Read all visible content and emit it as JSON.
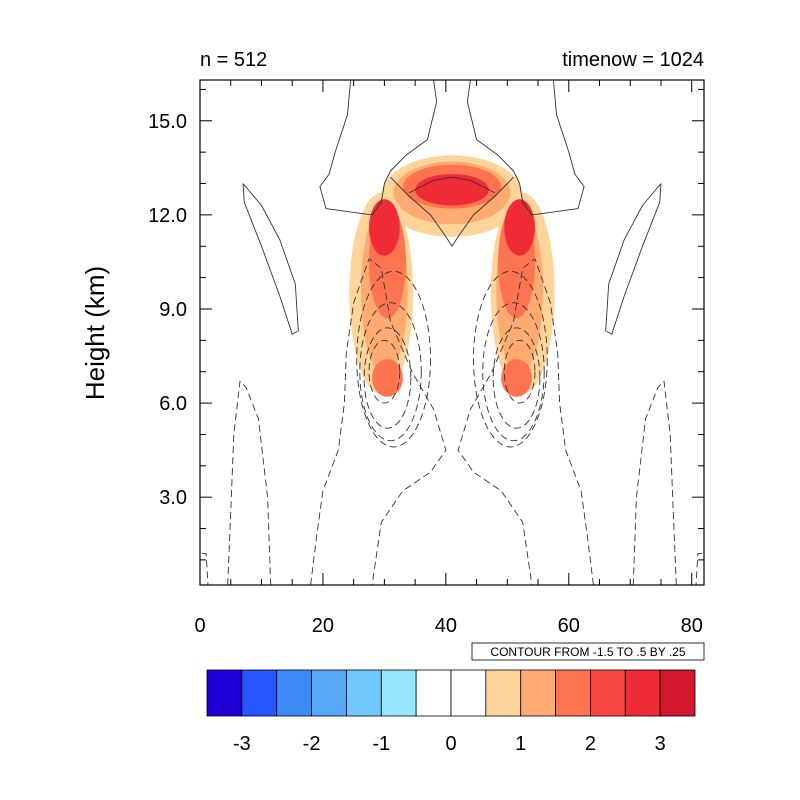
{
  "chart_data": {
    "type": "heatmap",
    "left_title": "n = 512",
    "right_title": "timenow = 1024",
    "ylabel": "Height (km)",
    "xlabel": "",
    "xlim": [
      0,
      82
    ],
    "ylim": [
      0.2,
      16.3
    ],
    "x_ticks": [
      0,
      20,
      40,
      60,
      80
    ],
    "x_tick_labels": [
      "0",
      "20",
      "40",
      "60",
      "80"
    ],
    "y_ticks": [
      3,
      6,
      9,
      12,
      15
    ],
    "y_tick_labels": [
      "3.0",
      "6.0",
      "9.0",
      "12.0",
      "15.0"
    ],
    "contour_info": "CONTOUR FROM -1.5 TO .5 BY .25",
    "colorbar": {
      "colors": [
        "#1f00d6",
        "#2756ff",
        "#3d8af7",
        "#56a8f4",
        "#6fc7fb",
        "#97e6ff",
        "#ffffff",
        "#ffffff",
        "#ffd49b",
        "#ffaa70",
        "#ff7450",
        "#f84640",
        "#ef2b36",
        "#d4162e"
      ],
      "tick_values": [
        -3,
        -2,
        -1,
        0,
        1,
        2,
        3
      ],
      "tick_labels": [
        "-3",
        "-2",
        "-1",
        "0",
        "1",
        "2",
        "3"
      ]
    },
    "fill_bands": [
      {
        "level": 1,
        "color": "#ffd49b",
        "centers": [
          [
            29.5,
            9.5,
            5.2,
            3.2
          ],
          [
            52.5,
            9.5,
            5.2,
            3.2
          ],
          [
            41,
            12.6,
            11.5,
            1.3
          ]
        ]
      },
      {
        "level": 2,
        "color": "#ffaa70",
        "centers": [
          [
            30.0,
            9.6,
            3.8,
            2.7
          ],
          [
            52.0,
            9.6,
            3.8,
            2.7
          ],
          [
            41,
            12.7,
            9.5,
            1.0
          ]
        ]
      },
      {
        "level": 3,
        "color": "#ff7450",
        "centers": [
          [
            30.5,
            10.5,
            3.0,
            1.8
          ],
          [
            51.5,
            10.5,
            3.0,
            1.8
          ],
          [
            41,
            12.9,
            8.0,
            0.7
          ],
          [
            30.5,
            6.8,
            2.5,
            0.6
          ],
          [
            51.5,
            6.8,
            2.5,
            0.6
          ]
        ]
      },
      {
        "level": 4,
        "color": "#ef2b36",
        "centers": [
          [
            30.0,
            11.6,
            2.5,
            0.9
          ],
          [
            52.0,
            11.6,
            2.5,
            0.9
          ],
          [
            41,
            12.8,
            6.0,
            0.5
          ]
        ]
      }
    ],
    "contours": [
      {
        "style": "solid",
        "points": [
          [
            38,
            16.3
          ],
          [
            38.5,
            15.6
          ],
          [
            37,
            14.4
          ],
          [
            33.5,
            13.9
          ],
          [
            31,
            13.4
          ],
          [
            30,
            13.0
          ],
          [
            29.5,
            12.4
          ],
          [
            28,
            12.0
          ],
          [
            20.5,
            12.2
          ],
          [
            19.5,
            12.9
          ],
          [
            21,
            13.3
          ],
          [
            22,
            14.0
          ],
          [
            24,
            15.2
          ],
          [
            24.5,
            16.3
          ]
        ]
      },
      {
        "style": "solid",
        "points": [
          [
            44,
            16.3
          ],
          [
            43.5,
            15.6
          ],
          [
            45,
            14.4
          ],
          [
            48.5,
            13.9
          ],
          [
            51,
            13.4
          ],
          [
            52,
            13.0
          ],
          [
            52.5,
            12.4
          ],
          [
            54,
            12.0
          ],
          [
            61.5,
            12.2
          ],
          [
            62.5,
            12.9
          ],
          [
            61,
            13.3
          ],
          [
            60,
            14.0
          ],
          [
            58,
            15.2
          ],
          [
            57.5,
            16.3
          ]
        ]
      },
      {
        "style": "solid",
        "points": [
          [
            31,
            13.2
          ],
          [
            34,
            12.6
          ],
          [
            37.5,
            12.0
          ],
          [
            40,
            11.3
          ],
          [
            41,
            11.0
          ],
          [
            42,
            11.3
          ],
          [
            44.5,
            12.0
          ],
          [
            48,
            12.6
          ],
          [
            51,
            13.2
          ]
        ]
      },
      {
        "style": "solid",
        "points": [
          [
            34,
            12.7
          ],
          [
            38,
            13.1
          ],
          [
            41,
            13.2
          ],
          [
            44,
            13.1
          ],
          [
            48,
            12.7
          ]
        ]
      },
      {
        "style": "solid",
        "points": [
          [
            7,
            13.0
          ],
          [
            10,
            12.3
          ],
          [
            13,
            11.2
          ],
          [
            15.5,
            9.8
          ],
          [
            16,
            8.3
          ],
          [
            15,
            8.2
          ],
          [
            13,
            9.4
          ],
          [
            10,
            11.0
          ],
          [
            7.2,
            12.4
          ],
          [
            7,
            13.0
          ]
        ]
      },
      {
        "style": "solid",
        "points": [
          [
            75,
            13.0
          ],
          [
            72,
            12.3
          ],
          [
            69,
            11.2
          ],
          [
            66.5,
            9.8
          ],
          [
            66,
            8.3
          ],
          [
            67,
            8.2
          ],
          [
            69,
            9.4
          ],
          [
            72,
            11.0
          ],
          [
            74.8,
            12.4
          ],
          [
            75,
            13.0
          ]
        ]
      },
      {
        "style": "dashed",
        "points": [
          [
            18,
            0.2
          ],
          [
            19,
            1.8
          ],
          [
            20,
            3.2
          ],
          [
            22.5,
            4.5
          ],
          [
            23.5,
            6.0
          ],
          [
            23.8,
            7.6
          ],
          [
            25,
            9.2
          ],
          [
            27.5,
            10.6
          ],
          [
            29.5,
            10.3
          ],
          [
            31,
            8.6
          ],
          [
            34.5,
            7.0
          ],
          [
            38,
            5.8
          ],
          [
            40,
            4.5
          ],
          [
            37.5,
            3.8
          ],
          [
            33,
            3.2
          ],
          [
            29.5,
            2.2
          ],
          [
            28,
            0.2
          ]
        ]
      },
      {
        "style": "dashed",
        "points": [
          [
            64,
            0.2
          ],
          [
            63,
            1.8
          ],
          [
            62,
            3.2
          ],
          [
            59.5,
            4.5
          ],
          [
            58.5,
            6.0
          ],
          [
            58.2,
            7.6
          ],
          [
            57,
            9.2
          ],
          [
            54.5,
            10.6
          ],
          [
            52.5,
            10.3
          ],
          [
            51,
            8.6
          ],
          [
            47.5,
            7.0
          ],
          [
            44,
            5.8
          ],
          [
            42,
            4.5
          ],
          [
            44.5,
            3.8
          ],
          [
            49,
            3.2
          ],
          [
            52.5,
            2.2
          ],
          [
            54,
            0.2
          ]
        ]
      },
      {
        "style": "dashed",
        "points": [
          [
            4.5,
            0.2
          ],
          [
            5.0,
            2.5
          ],
          [
            5.5,
            5.0
          ],
          [
            6.5,
            6.7
          ],
          [
            7.5,
            6.5
          ],
          [
            9.5,
            5.5
          ],
          [
            11,
            3.0
          ],
          [
            11.5,
            0.2
          ]
        ]
      },
      {
        "style": "dashed",
        "points": [
          [
            77.5,
            0.2
          ],
          [
            77,
            2.5
          ],
          [
            76.5,
            5.0
          ],
          [
            75.5,
            6.7
          ],
          [
            74.5,
            6.5
          ],
          [
            72.5,
            5.5
          ],
          [
            71,
            3.0
          ],
          [
            70.5,
            0.2
          ]
        ]
      },
      {
        "style": "dashed",
        "points": [
          [
            0.3,
            1.2
          ],
          [
            1.0,
            1.2
          ],
          [
            1.3,
            0.2
          ]
        ]
      },
      {
        "style": "dashed",
        "points": [
          [
            81.7,
            1.2
          ],
          [
            81.0,
            1.2
          ],
          [
            80.7,
            0.2
          ]
        ]
      },
      {
        "style": "dashed",
        "ellipse": [
          30.0,
          7.0,
          2.5,
          1.0
        ]
      },
      {
        "style": "dashed",
        "ellipse": [
          30.5,
          6.8,
          3.8,
          1.6
        ]
      },
      {
        "style": "dashed",
        "ellipse": [
          31.0,
          7.0,
          5.0,
          2.2
        ]
      },
      {
        "style": "dashed",
        "ellipse": [
          31.5,
          7.4,
          6.0,
          2.8
        ]
      },
      {
        "style": "dashed",
        "ellipse": [
          52.0,
          7.0,
          2.5,
          1.0
        ]
      },
      {
        "style": "dashed",
        "ellipse": [
          51.5,
          6.8,
          3.8,
          1.6
        ]
      },
      {
        "style": "dashed",
        "ellipse": [
          51.0,
          7.0,
          5.0,
          2.2
        ]
      },
      {
        "style": "dashed",
        "ellipse": [
          50.5,
          7.4,
          6.0,
          2.8
        ]
      }
    ]
  }
}
